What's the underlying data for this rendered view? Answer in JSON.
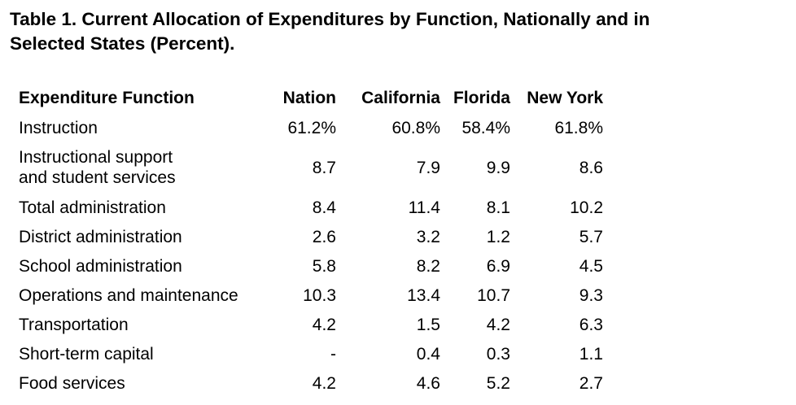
{
  "title_line1": "Table 1. Current Allocation of Expenditures by Function, Nationally and in",
  "title_line2": "Selected States (Percent).",
  "headers": [
    "Expenditure Function",
    "Nation",
    "California",
    "Florida",
    "New York"
  ],
  "rows": [
    {
      "label": [
        "Instruction"
      ],
      "nation": "61.2%",
      "california": "60.8%",
      "florida": "58.4%",
      "new_york": "61.8%"
    },
    {
      "label": [
        "Instructional support",
        "and student services"
      ],
      "nation": "8.7",
      "california": "7.9",
      "florida": "9.9",
      "new_york": "8.6"
    },
    {
      "label": [
        "Total administration"
      ],
      "nation": "8.4",
      "california": "11.4",
      "florida": "8.1",
      "new_york": "10.2"
    },
    {
      "label": [
        "District administration"
      ],
      "nation": "2.6",
      "california": "3.2",
      "florida": "1.2",
      "new_york": "5.7"
    },
    {
      "label": [
        "School administration"
      ],
      "nation": "5.8",
      "california": "8.2",
      "florida": "6.9",
      "new_york": "4.5"
    },
    {
      "label": [
        "Operations and maintenance"
      ],
      "nation": "10.3",
      "california": "13.4",
      "florida": "10.7",
      "new_york": "9.3"
    },
    {
      "label": [
        "Transportation"
      ],
      "nation": "4.2",
      "california": "1.5",
      "florida": "4.2",
      "new_york": "6.3"
    },
    {
      "label": [
        "Short-term capital"
      ],
      "nation": "-",
      "california": "0.4",
      "florida": "0.3",
      "new_york": "1.1"
    },
    {
      "label": [
        "Food services"
      ],
      "nation": "4.2",
      "california": "4.6",
      "florida": "5.2",
      "new_york": "2.7"
    }
  ]
}
